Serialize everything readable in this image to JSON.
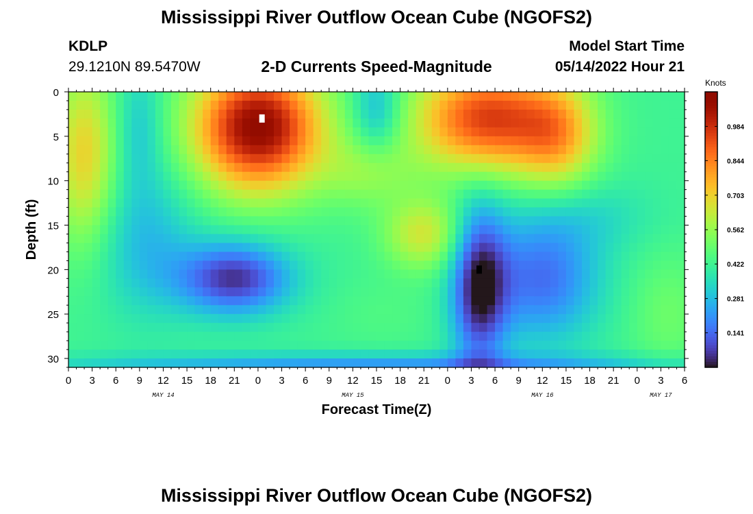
{
  "page": {
    "title": "Mississippi River Outflow Ocean Cube (NGOFS2)",
    "station_id": "KDLP",
    "station_coords": "29.1210N  89.5470W",
    "subtitle": "2-D Currents Speed-Magnitude",
    "model_start_label": "Model Start Time",
    "model_start_value": "05/14/2022 Hour 21",
    "repeated_title": "Mississippi River Outflow Ocean Cube (NGOFS2)"
  },
  "chart_data": {
    "type": "heatmap",
    "xlabel": "Forecast Time(Z)",
    "ylabel": "Depth (ft)",
    "x_range_hours": [
      0,
      78
    ],
    "x_tick_labels": [
      "0",
      "3",
      "6",
      "9",
      "12",
      "15",
      "18",
      "21",
      "0",
      "3",
      "6",
      "9",
      "12",
      "15",
      "18",
      "21",
      "0",
      "3",
      "6",
      "9",
      "12",
      "15",
      "18",
      "21",
      "0",
      "3",
      "6"
    ],
    "day_labels": [
      {
        "label": "MAY 14",
        "hour": 12
      },
      {
        "label": "MAY 15",
        "hour": 36
      },
      {
        "label": "MAY 16",
        "hour": 60
      },
      {
        "label": "MAY 17",
        "hour": 75
      }
    ],
    "ylim": [
      0,
      31
    ],
    "y_ticks": [
      0,
      5,
      10,
      15,
      20,
      25,
      30
    ],
    "colorbar": {
      "units": "Knots",
      "min": 0.0,
      "max": 1.125,
      "ticks": [
        0.141,
        0.281,
        0.422,
        0.562,
        0.703,
        0.844,
        0.984
      ],
      "tick_labels": [
        "0.141",
        "0.281",
        "0.422",
        "0.562",
        "0.703",
        "0.844",
        "0.984"
      ],
      "colormap": "turbo"
    },
    "markers": [
      {
        "name": "max-marker",
        "hour": 24.5,
        "depth": 3.0,
        "color": "#ffffff"
      },
      {
        "name": "min-marker",
        "hour": 52.0,
        "depth": 20.0,
        "color": "#000000"
      }
    ],
    "field_features": [
      {
        "hour": 2,
        "depth": 7,
        "rx": 4,
        "ry": 10,
        "value": 0.7
      },
      {
        "hour": 24,
        "depth": 4,
        "rx": 8,
        "ry": 7,
        "value": 1.1
      },
      {
        "hour": 45,
        "depth": 16,
        "rx": 5,
        "ry": 4,
        "value": 0.65
      },
      {
        "hour": 53,
        "depth": 3,
        "rx": 9,
        "ry": 6,
        "value": 0.95
      },
      {
        "hour": 62,
        "depth": 5,
        "rx": 5,
        "ry": 6,
        "value": 0.7
      },
      {
        "hour": 38,
        "depth": 9,
        "rx": 6,
        "ry": 4,
        "value": 0.55
      },
      {
        "hour": 76,
        "depth": 25,
        "rx": 5,
        "ry": 7,
        "value": 0.5
      },
      {
        "hour": 40,
        "depth": 25,
        "rx": 7,
        "ry": 4,
        "value": 0.45
      },
      {
        "hour": 9,
        "depth": 4,
        "rx": 3,
        "ry": 7,
        "value": 0.3
      },
      {
        "hour": 39,
        "depth": 2,
        "rx": 3,
        "ry": 5,
        "value": 0.25
      },
      {
        "hour": 10,
        "depth": 17,
        "rx": 6,
        "ry": 8,
        "value": 0.28
      },
      {
        "hour": 21,
        "depth": 21,
        "rx": 7,
        "ry": 4,
        "value": 0.05
      },
      {
        "hour": 52,
        "depth": 22,
        "rx": 3.5,
        "ry": 9,
        "value": 0.02
      },
      {
        "hour": 60,
        "depth": 21,
        "rx": 7,
        "ry": 7,
        "value": 0.15
      },
      {
        "hour": 40,
        "depth": 31,
        "rx": 40,
        "ry": 1.5,
        "value": 0.2
      },
      {
        "hour": 66,
        "depth": 14,
        "rx": 8,
        "ry": 4,
        "value": 0.35
      }
    ]
  }
}
